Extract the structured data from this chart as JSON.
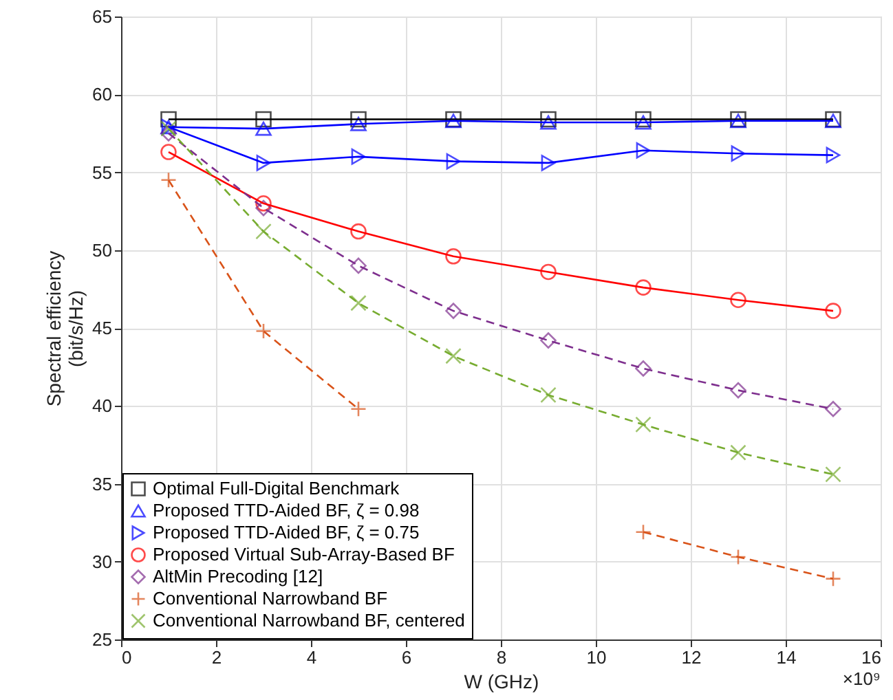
{
  "chart_data": {
    "type": "line",
    "xlabel": "W (GHz)",
    "ylabel": "Spectral efficiency (bit/s/Hz)",
    "annotations": [
      "×10⁹"
    ],
    "x": [
      1,
      3,
      5,
      7,
      9,
      11,
      13,
      15
    ],
    "xlim": [
      0,
      16
    ],
    "xticks": [
      0,
      2,
      4,
      6,
      8,
      10,
      12,
      14,
      16
    ],
    "ylim": [
      25,
      65
    ],
    "yticks": [
      25,
      30,
      35,
      40,
      45,
      50,
      55,
      60,
      65
    ],
    "grid": true,
    "legend": "bottom left",
    "series": [
      {
        "name": "Optimal Full-Digital Benchmark",
        "color": "#000000",
        "marker": "square",
        "line_style": "solid",
        "values": [
          58.4,
          58.4,
          58.4,
          58.4,
          58.4,
          58.4,
          58.4,
          58.4
        ]
      },
      {
        "name": "Proposed TTD-Aided BF, ζ = 0.98",
        "color": "#0000ff",
        "marker": "triangle",
        "line_style": "solid",
        "values": [
          57.9,
          57.8,
          58.1,
          58.3,
          58.2,
          58.2,
          58.3,
          58.3
        ]
      },
      {
        "name": "Proposed TTD-Aided BF, ζ = 0.75",
        "color": "#0000ff",
        "marker": "triangle-right",
        "line_style": "solid",
        "values": [
          57.9,
          55.6,
          56.0,
          55.7,
          55.6,
          56.4,
          56.2,
          56.1
        ]
      },
      {
        "name": "Proposed Virtual Sub-Array-Based BF",
        "color": "#ff0000",
        "marker": "circle",
        "line_style": "solid",
        "values": [
          56.3,
          53.0,
          51.2,
          49.6,
          48.6,
          47.6,
          46.8,
          46.1
        ]
      },
      {
        "name": "AltMin Precoding [12]",
        "color": "#7e2f8e",
        "marker": "diamond",
        "line_style": "dashed",
        "values": [
          57.5,
          52.7,
          49.0,
          46.1,
          44.2,
          42.4,
          41.0,
          39.8
        ]
      },
      {
        "name": "Conventional Narrowband BF",
        "color": "#d95319",
        "marker": "plus",
        "line_style": "dashed",
        "values": [
          54.5,
          44.8,
          39.8,
          null,
          null,
          31.9,
          30.3,
          28.9
        ]
      },
      {
        "name": "Conventional Narrowband BF, centered",
        "color": "#77ac30",
        "marker": "cross",
        "line_style": "dashed",
        "values": [
          57.8,
          51.2,
          46.6,
          43.2,
          40.7,
          38.8,
          37.0,
          35.6
        ]
      }
    ]
  }
}
